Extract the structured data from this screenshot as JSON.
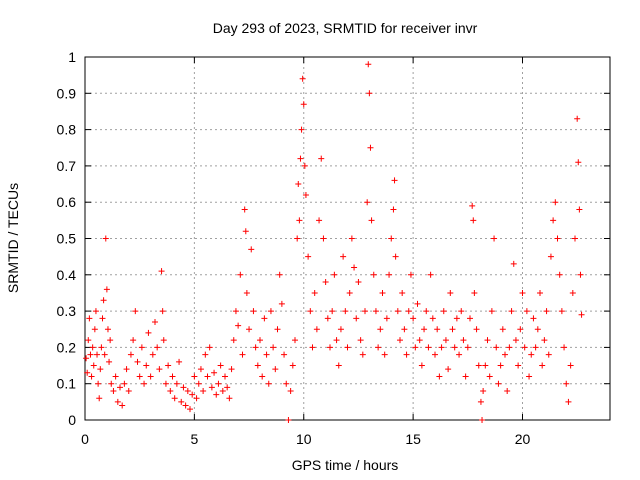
{
  "chart_data": {
    "type": "scatter",
    "title": "Day 293 of 2023, SRMTID for receiver invr",
    "xlabel": "GPS time / hours",
    "ylabel": "SRMTID / TECUs",
    "xlim": [
      0,
      24
    ],
    "ylim": [
      0,
      1
    ],
    "grid": true,
    "marker": "+",
    "series_color": "#ff0000",
    "x_ticks": [
      0,
      5,
      10,
      15,
      20
    ],
    "x_tick_labels": [
      "0",
      "5",
      "10",
      "15",
      "20"
    ],
    "y_ticks": [
      0,
      0.1,
      0.2,
      0.3,
      0.4,
      0.5,
      0.6,
      0.7,
      0.8,
      0.9,
      1
    ],
    "y_tick_labels": [
      "0",
      "0.1",
      "0.2",
      "0.3",
      "0.4",
      "0.5",
      "0.6",
      "0.7",
      "0.8",
      "0.9",
      "1"
    ],
    "series": [
      {
        "name": "SRMTID",
        "points": [
          [
            0.05,
            0.17
          ],
          [
            0.1,
            0.13
          ],
          [
            0.15,
            0.22
          ],
          [
            0.2,
            0.28
          ],
          [
            0.25,
            0.18
          ],
          [
            0.3,
            0.12
          ],
          [
            0.35,
            0.2
          ],
          [
            0.4,
            0.15
          ],
          [
            0.45,
            0.25
          ],
          [
            0.5,
            0.3
          ],
          [
            0.55,
            0.18
          ],
          [
            0.6,
            0.1
          ],
          [
            0.65,
            0.06
          ],
          [
            0.7,
            0.14
          ],
          [
            0.75,
            0.2
          ],
          [
            0.8,
            0.28
          ],
          [
            0.85,
            0.33
          ],
          [
            0.9,
            0.18
          ],
          [
            0.95,
            0.5
          ],
          [
            1.0,
            0.36
          ],
          [
            1.05,
            0.25
          ],
          [
            1.1,
            0.16
          ],
          [
            1.15,
            0.22
          ],
          [
            1.2,
            0.1
          ],
          [
            1.3,
            0.08
          ],
          [
            1.4,
            0.12
          ],
          [
            1.5,
            0.05
          ],
          [
            1.6,
            0.09
          ],
          [
            1.7,
            0.04
          ],
          [
            1.8,
            0.1
          ],
          [
            1.9,
            0.14
          ],
          [
            2.0,
            0.08
          ],
          [
            2.1,
            0.18
          ],
          [
            2.2,
            0.22
          ],
          [
            2.3,
            0.3
          ],
          [
            2.4,
            0.16
          ],
          [
            2.5,
            0.12
          ],
          [
            2.6,
            0.2
          ],
          [
            2.7,
            0.1
          ],
          [
            2.8,
            0.15
          ],
          [
            2.9,
            0.24
          ],
          [
            3.0,
            0.12
          ],
          [
            3.1,
            0.18
          ],
          [
            3.2,
            0.27
          ],
          [
            3.3,
            0.2
          ],
          [
            3.4,
            0.14
          ],
          [
            3.5,
            0.41
          ],
          [
            3.55,
            0.3
          ],
          [
            3.6,
            0.22
          ],
          [
            3.7,
            0.1
          ],
          [
            3.8,
            0.15
          ],
          [
            3.9,
            0.08
          ],
          [
            4.0,
            0.12
          ],
          [
            4.1,
            0.06
          ],
          [
            4.2,
            0.1
          ],
          [
            4.3,
            0.16
          ],
          [
            4.4,
            0.05
          ],
          [
            4.5,
            0.09
          ],
          [
            4.6,
            0.04
          ],
          [
            4.7,
            0.08
          ],
          [
            4.8,
            0.03
          ],
          [
            4.9,
            0.07
          ],
          [
            5.0,
            0.12
          ],
          [
            5.1,
            0.06
          ],
          [
            5.2,
            0.1
          ],
          [
            5.3,
            0.14
          ],
          [
            5.4,
            0.08
          ],
          [
            5.5,
            0.18
          ],
          [
            5.6,
            0.12
          ],
          [
            5.7,
            0.2
          ],
          [
            5.8,
            0.09
          ],
          [
            5.9,
            0.13
          ],
          [
            6.0,
            0.07
          ],
          [
            6.1,
            0.1
          ],
          [
            6.2,
            0.15
          ],
          [
            6.3,
            0.08
          ],
          [
            6.4,
            0.12
          ],
          [
            6.5,
            0.09
          ],
          [
            6.6,
            0.06
          ],
          [
            6.7,
            0.14
          ],
          [
            6.8,
            0.22
          ],
          [
            6.9,
            0.3
          ],
          [
            7.0,
            0.26
          ],
          [
            7.1,
            0.4
          ],
          [
            7.2,
            0.18
          ],
          [
            7.3,
            0.58
          ],
          [
            7.35,
            0.52
          ],
          [
            7.4,
            0.35
          ],
          [
            7.5,
            0.25
          ],
          [
            7.6,
            0.47
          ],
          [
            7.7,
            0.3
          ],
          [
            7.8,
            0.2
          ],
          [
            7.9,
            0.15
          ],
          [
            8.0,
            0.22
          ],
          [
            8.1,
            0.12
          ],
          [
            8.2,
            0.28
          ],
          [
            8.3,
            0.18
          ],
          [
            8.4,
            0.1
          ],
          [
            8.5,
            0.3
          ],
          [
            8.6,
            0.2
          ],
          [
            8.7,
            0.14
          ],
          [
            8.8,
            0.25
          ],
          [
            8.9,
            0.4
          ],
          [
            9.0,
            0.32
          ],
          [
            9.1,
            0.18
          ],
          [
            9.2,
            0.1
          ],
          [
            9.3,
            0.0
          ],
          [
            9.4,
            0.08
          ],
          [
            9.5,
            0.15
          ],
          [
            9.6,
            0.22
          ],
          [
            9.7,
            0.5
          ],
          [
            9.75,
            0.65
          ],
          [
            9.8,
            0.55
          ],
          [
            9.85,
            0.72
          ],
          [
            9.9,
            0.8
          ],
          [
            9.95,
            0.94
          ],
          [
            10.0,
            0.87
          ],
          [
            10.05,
            0.7
          ],
          [
            10.1,
            0.62
          ],
          [
            10.2,
            0.45
          ],
          [
            10.3,
            0.3
          ],
          [
            10.4,
            0.2
          ],
          [
            10.5,
            0.35
          ],
          [
            10.6,
            0.25
          ],
          [
            10.7,
            0.55
          ],
          [
            10.8,
            0.72
          ],
          [
            10.9,
            0.5
          ],
          [
            11.0,
            0.38
          ],
          [
            11.1,
            0.28
          ],
          [
            11.2,
            0.2
          ],
          [
            11.3,
            0.3
          ],
          [
            11.4,
            0.4
          ],
          [
            11.5,
            0.22
          ],
          [
            11.6,
            0.15
          ],
          [
            11.7,
            0.25
          ],
          [
            11.8,
            0.45
          ],
          [
            11.9,
            0.3
          ],
          [
            12.0,
            0.2
          ],
          [
            12.1,
            0.35
          ],
          [
            12.2,
            0.5
          ],
          [
            12.3,
            0.42
          ],
          [
            12.4,
            0.28
          ],
          [
            12.5,
            0.38
          ],
          [
            12.6,
            0.22
          ],
          [
            12.7,
            0.18
          ],
          [
            12.8,
            0.3
          ],
          [
            12.9,
            0.6
          ],
          [
            12.95,
            0.98
          ],
          [
            13.0,
            0.9
          ],
          [
            13.05,
            0.75
          ],
          [
            13.1,
            0.55
          ],
          [
            13.2,
            0.4
          ],
          [
            13.3,
            0.3
          ],
          [
            13.4,
            0.2
          ],
          [
            13.5,
            0.25
          ],
          [
            13.6,
            0.35
          ],
          [
            13.7,
            0.18
          ],
          [
            13.8,
            0.28
          ],
          [
            13.9,
            0.4
          ],
          [
            14.0,
            0.5
          ],
          [
            14.1,
            0.58
          ],
          [
            14.15,
            0.66
          ],
          [
            14.2,
            0.45
          ],
          [
            14.3,
            0.3
          ],
          [
            14.4,
            0.22
          ],
          [
            14.5,
            0.35
          ],
          [
            14.6,
            0.25
          ],
          [
            14.7,
            0.18
          ],
          [
            14.8,
            0.3
          ],
          [
            14.9,
            0.4
          ],
          [
            15.0,
            0.28
          ],
          [
            15.1,
            0.2
          ],
          [
            15.2,
            0.32
          ],
          [
            15.3,
            0.22
          ],
          [
            15.4,
            0.15
          ],
          [
            15.5,
            0.25
          ],
          [
            15.6,
            0.3
          ],
          [
            15.7,
            0.2
          ],
          [
            15.8,
            0.4
          ],
          [
            15.9,
            0.28
          ],
          [
            16.0,
            0.18
          ],
          [
            16.1,
            0.25
          ],
          [
            16.2,
            0.12
          ],
          [
            16.3,
            0.2
          ],
          [
            16.4,
            0.3
          ],
          [
            16.5,
            0.22
          ],
          [
            16.6,
            0.14
          ],
          [
            16.7,
            0.35
          ],
          [
            16.8,
            0.25
          ],
          [
            16.9,
            0.2
          ],
          [
            17.0,
            0.28
          ],
          [
            17.1,
            0.18
          ],
          [
            17.2,
            0.3
          ],
          [
            17.3,
            0.22
          ],
          [
            17.4,
            0.12
          ],
          [
            17.5,
            0.2
          ],
          [
            17.6,
            0.28
          ],
          [
            17.7,
            0.59
          ],
          [
            17.75,
            0.55
          ],
          [
            17.8,
            0.35
          ],
          [
            17.9,
            0.25
          ],
          [
            18.0,
            0.15
          ],
          [
            18.1,
            0.05
          ],
          [
            18.15,
            0.0
          ],
          [
            18.2,
            0.08
          ],
          [
            18.3,
            0.15
          ],
          [
            18.4,
            0.22
          ],
          [
            18.5,
            0.12
          ],
          [
            18.6,
            0.3
          ],
          [
            18.7,
            0.5
          ],
          [
            18.8,
            0.2
          ],
          [
            18.9,
            0.1
          ],
          [
            19.0,
            0.15
          ],
          [
            19.1,
            0.25
          ],
          [
            19.2,
            0.18
          ],
          [
            19.3,
            0.08
          ],
          [
            19.4,
            0.2
          ],
          [
            19.5,
            0.3
          ],
          [
            19.6,
            0.43
          ],
          [
            19.7,
            0.22
          ],
          [
            19.8,
            0.15
          ],
          [
            19.9,
            0.25
          ],
          [
            20.0,
            0.35
          ],
          [
            20.1,
            0.2
          ],
          [
            20.2,
            0.3
          ],
          [
            20.3,
            0.12
          ],
          [
            20.4,
            0.18
          ],
          [
            20.5,
            0.28
          ],
          [
            20.6,
            0.2
          ],
          [
            20.7,
            0.25
          ],
          [
            20.8,
            0.35
          ],
          [
            20.9,
            0.15
          ],
          [
            21.0,
            0.22
          ],
          [
            21.1,
            0.3
          ],
          [
            21.2,
            0.18
          ],
          [
            21.3,
            0.45
          ],
          [
            21.4,
            0.55
          ],
          [
            21.5,
            0.6
          ],
          [
            21.6,
            0.5
          ],
          [
            21.7,
            0.4
          ],
          [
            21.8,
            0.3
          ],
          [
            21.9,
            0.2
          ],
          [
            22.0,
            0.1
          ],
          [
            22.1,
            0.05
          ],
          [
            22.2,
            0.15
          ],
          [
            22.3,
            0.35
          ],
          [
            22.4,
            0.5
          ],
          [
            22.5,
            0.83
          ],
          [
            22.55,
            0.71
          ],
          [
            22.6,
            0.58
          ],
          [
            22.65,
            0.4
          ],
          [
            22.7,
            0.29
          ]
        ]
      }
    ]
  }
}
